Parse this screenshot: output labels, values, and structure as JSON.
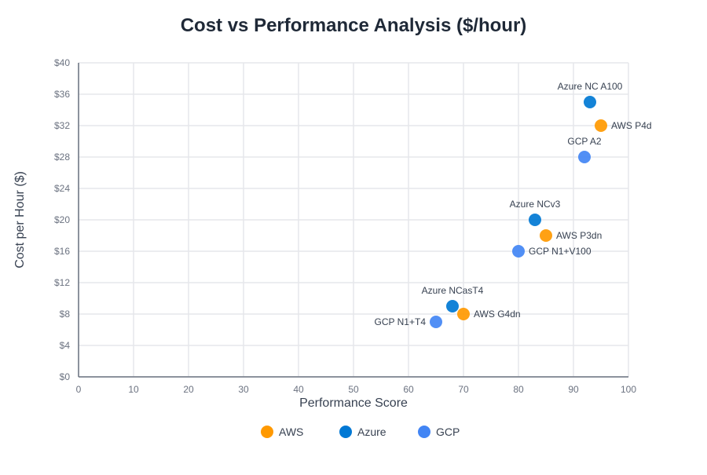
{
  "chart_data": {
    "type": "scatter",
    "title": "Cost vs Performance Analysis ($/hour)",
    "xlabel": "Performance Score",
    "ylabel": "Cost per Hour ($)",
    "xlim": [
      0,
      100
    ],
    "ylim": [
      0,
      40
    ],
    "x_ticks": [
      "0",
      "10",
      "20",
      "30",
      "40",
      "50",
      "60",
      "70",
      "80",
      "90",
      "100"
    ],
    "x_tick_values": [
      0,
      10,
      20,
      30,
      40,
      50,
      60,
      70,
      80,
      90,
      100
    ],
    "y_ticks": [
      "$0",
      "$4",
      "$8",
      "$12",
      "$16",
      "$20",
      "$24",
      "$28",
      "$32",
      "$36",
      "$40"
    ],
    "y_tick_values": [
      0,
      4,
      8,
      12,
      16,
      20,
      24,
      28,
      32,
      36,
      40
    ],
    "grid": true,
    "legend_position": "bottom",
    "series": [
      {
        "name": "AWS",
        "color": "#FF9900",
        "points": [
          {
            "label": "AWS P4d",
            "x": 95,
            "y": 32
          },
          {
            "label": "AWS P3dn",
            "x": 85,
            "y": 18
          },
          {
            "label": "AWS G4dn",
            "x": 70,
            "y": 8
          }
        ]
      },
      {
        "name": "Azure",
        "color": "#0078D4",
        "points": [
          {
            "label": "Azure NC A100",
            "x": 93,
            "y": 35
          },
          {
            "label": "Azure NCv3",
            "x": 83,
            "y": 20
          },
          {
            "label": "Azure NCasT4",
            "x": 68,
            "y": 9
          }
        ]
      },
      {
        "name": "GCP",
        "color": "#4285F4",
        "points": [
          {
            "label": "GCP A2",
            "x": 92,
            "y": 28
          },
          {
            "label": "GCP N1+V100",
            "x": 80,
            "y": 16
          },
          {
            "label": "GCP N1+T4",
            "x": 65,
            "y": 7
          }
        ]
      }
    ]
  }
}
